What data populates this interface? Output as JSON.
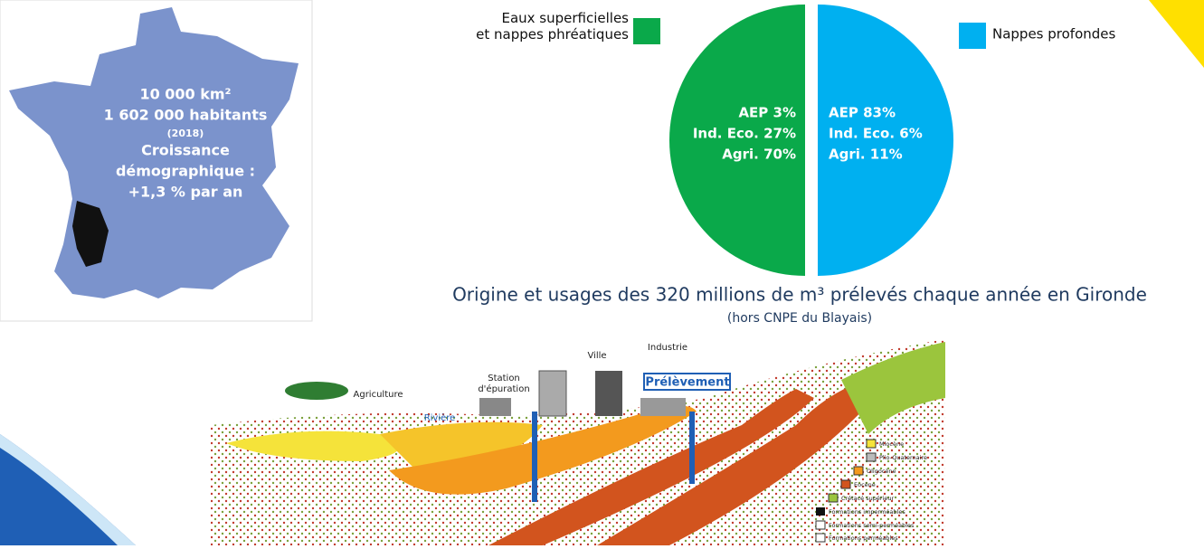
{
  "map": {
    "lines": [
      "10 000 km²",
      "1 602 000 habitants",
      "(2018)",
      "Croissance",
      "démographique :",
      "+1,3 % par an"
    ]
  },
  "chart_data": {
    "type": "pie",
    "title": "Origine et usages des 320 millions de m³ prélevés chaque année en Gironde",
    "subtitle": "(hors CNPE du Blayais)",
    "categories": [
      "Eaux superficielles\net nappes phréatiques",
      "Nappes profondes"
    ],
    "values": [
      50,
      50
    ],
    "colors": [
      "#0aa94a",
      "#00b0f0"
    ],
    "slice_labels": [
      [
        "AEP 3%",
        "Ind. Eco. 27%",
        "Agri. 70%"
      ],
      [
        "AEP 83%",
        "Ind. Eco. 6%",
        "Agri. 11%"
      ]
    ]
  },
  "diagram": {
    "labels": [
      "Agriculture",
      "Rivière",
      "Station\nd'épuration",
      "Ville",
      "Industrie",
      "Prélèvement"
    ],
    "legend": [
      "Miocène",
      "Plio-Quaternaire",
      "Oligocène",
      "Eocène",
      "Crétacé supérieur",
      "Formations imperméables",
      "Formations semi-perméables",
      "Formations perméables"
    ]
  }
}
